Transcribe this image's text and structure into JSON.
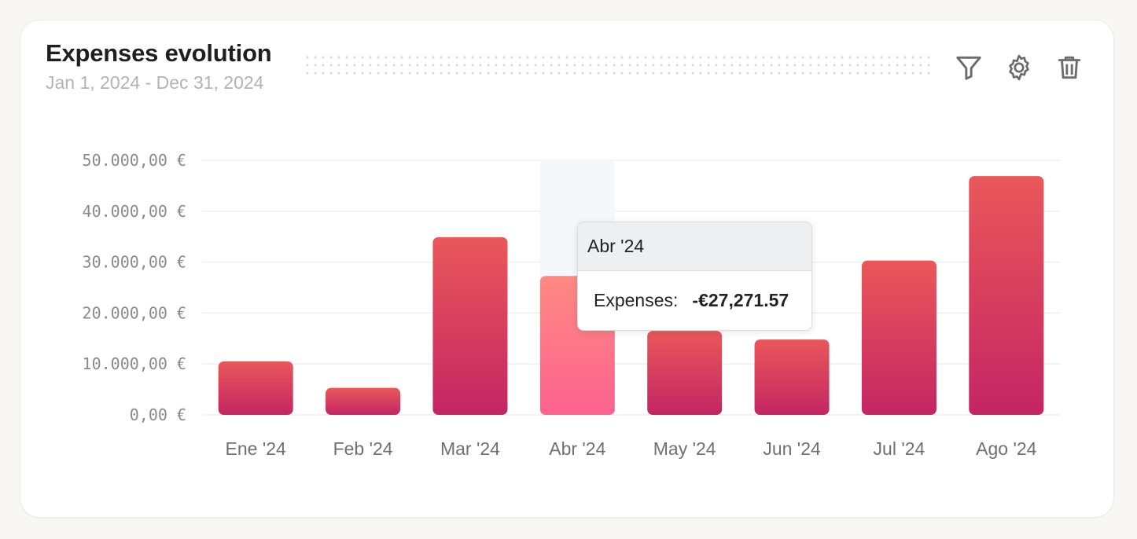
{
  "header": {
    "title": "Expenses evolution",
    "subtitle": "Jan 1, 2024 - Dec 31, 2024"
  },
  "toolbar": {
    "filter_icon": "filter-icon",
    "settings_icon": "gear-icon",
    "delete_icon": "trash-icon"
  },
  "tooltip": {
    "category": "Abr '24",
    "label": "Expenses:",
    "value": "-€27,271.57"
  },
  "colors": {
    "bar_top": "#e9585a",
    "bar_bottom": "#c42563",
    "bar_active_top": "#fe8a82",
    "bar_active_bottom": "#fd6290",
    "gridline": "#efefef",
    "highlight_band": "#f5f7fb"
  },
  "chart_data": {
    "type": "bar",
    "categories": [
      "Ene '24",
      "Feb '24",
      "Mar '24",
      "Abr '24",
      "May '24",
      "Jun '24",
      "Jul '24",
      "Ago '24"
    ],
    "series": [
      {
        "name": "Expenses",
        "values": [
          10500,
          5300,
          34900,
          27271.57,
          16500,
          14800,
          30300,
          46900
        ]
      }
    ],
    "ylim": [
      0,
      50000
    ],
    "yticks": [
      0,
      10000,
      20000,
      30000,
      40000,
      50000
    ],
    "ytick_labels": [
      "0,00 €",
      "10.000,00 €",
      "20.000,00 €",
      "30.000,00 €",
      "40.000,00 €",
      "50.000,00 €"
    ],
    "active_index": 3,
    "grid": true,
    "xlabel": "",
    "ylabel": ""
  }
}
